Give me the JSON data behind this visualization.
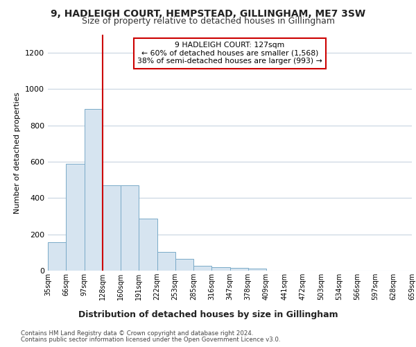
{
  "title1": "9, HADLEIGH COURT, HEMPSTEAD, GILLINGHAM, ME7 3SW",
  "title2": "Size of property relative to detached houses in Gillingham",
  "xlabel": "Distribution of detached houses by size in Gillingham",
  "ylabel": "Number of detached properties",
  "bins": [
    "35sqm",
    "66sqm",
    "97sqm",
    "128sqm",
    "160sqm",
    "191sqm",
    "222sqm",
    "253sqm",
    "285sqm",
    "316sqm",
    "347sqm",
    "378sqm",
    "409sqm",
    "441sqm",
    "472sqm",
    "503sqm",
    "534sqm",
    "566sqm",
    "597sqm",
    "628sqm",
    "659sqm"
  ],
  "bar_values": [
    155,
    590,
    890,
    470,
    470,
    285,
    105,
    65,
    28,
    20,
    15,
    10,
    0,
    0,
    0,
    0,
    0,
    0,
    0,
    0
  ],
  "bar_color": "#d6e4f0",
  "bar_edge_color": "#7aaac8",
  "property_bin_index": 3,
  "annotation_title": "9 HADLEIGH COURT: 127sqm",
  "annotation_line1": "← 60% of detached houses are smaller (1,568)",
  "annotation_line2": "38% of semi-detached houses are larger (993) →",
  "vline_color": "#cc0000",
  "footer1": "Contains HM Land Registry data © Crown copyright and database right 2024.",
  "footer2": "Contains public sector information licensed under the Open Government Licence v3.0.",
  "ylim": [
    0,
    1300
  ],
  "yticks": [
    0,
    200,
    400,
    600,
    800,
    1000,
    1200
  ],
  "bg_color": "#ffffff",
  "grid_color": "#c8d4e0"
}
